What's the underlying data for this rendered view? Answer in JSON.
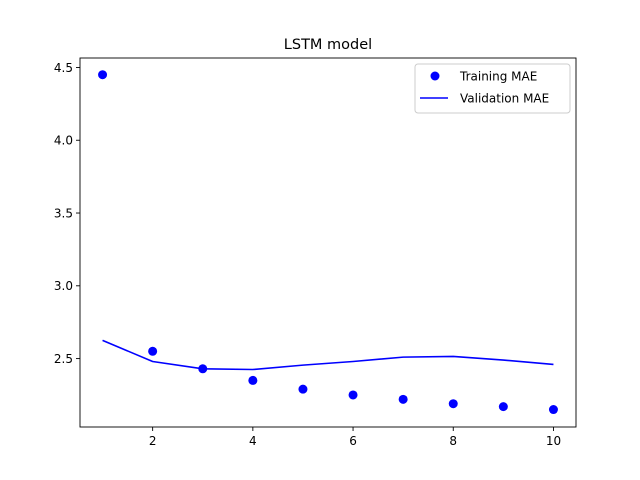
{
  "chart_data": {
    "type": "line",
    "title": "LSTM model",
    "xlabel": "",
    "ylabel": "",
    "xlim": [
      0.55,
      10.45
    ],
    "ylim": [
      2.03,
      4.565
    ],
    "x_ticks": [
      2,
      4,
      6,
      8,
      10
    ],
    "y_ticks": [
      2.5,
      3.0,
      3.5,
      4.0,
      4.5
    ],
    "x_tick_labels": [
      "2",
      "4",
      "6",
      "8",
      "10"
    ],
    "y_tick_labels": [
      "2.5",
      "3.0",
      "3.5",
      "4.0",
      "4.5"
    ],
    "grid": false,
    "legend_position": "top-right",
    "x": [
      1,
      2,
      3,
      4,
      5,
      6,
      7,
      8,
      9,
      10
    ],
    "series": [
      {
        "name": "Training MAE",
        "style": "markers",
        "color": "#0000ff",
        "values": [
          4.45,
          2.55,
          2.43,
          2.35,
          2.29,
          2.25,
          2.22,
          2.19,
          2.17,
          2.15
        ]
      },
      {
        "name": "Validation MAE",
        "style": "line",
        "color": "#0000ff",
        "values": [
          2.625,
          2.48,
          2.43,
          2.425,
          2.455,
          2.48,
          2.51,
          2.515,
          2.49,
          2.46
        ]
      }
    ]
  }
}
